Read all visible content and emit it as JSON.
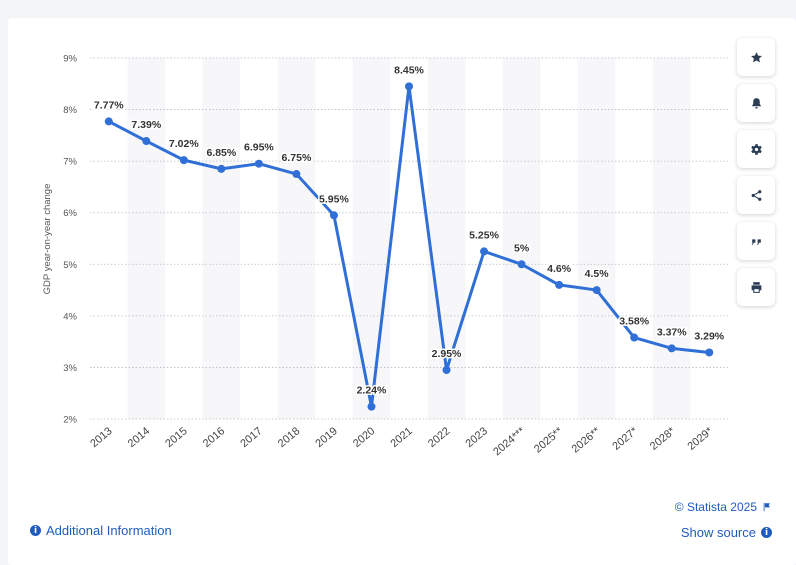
{
  "chart_data": {
    "type": "line",
    "categories": [
      "2013",
      "2014",
      "2015",
      "2016",
      "2017",
      "2018",
      "2019",
      "2020",
      "2021",
      "2022",
      "2023",
      "2024***",
      "2025**",
      "2026**",
      "2027*",
      "2028*",
      "2029*"
    ],
    "values": [
      7.77,
      7.39,
      7.02,
      6.85,
      6.95,
      6.75,
      5.95,
      2.24,
      8.45,
      2.95,
      5.25,
      5.0,
      4.6,
      4.5,
      3.58,
      3.37,
      3.29
    ],
    "data_labels": [
      "7.77%",
      "7.39%",
      "7.02%",
      "6.85%",
      "6.95%",
      "6.75%",
      "5.95%",
      "2.24%",
      "8.45%",
      "2.95%",
      "5.25%",
      "5%",
      "4.6%",
      "4.5%",
      "3.58%",
      "3.37%",
      "3.29%"
    ],
    "ylabel": "GDP year-on-year change",
    "xlabel": "",
    "ylim": [
      2,
      9
    ],
    "yticks": [
      "2%",
      "3%",
      "4%",
      "5%",
      "6%",
      "7%",
      "8%",
      "9%"
    ],
    "grid": true,
    "line_color": "#2f6fd6",
    "title": ""
  },
  "toolbar": {
    "icons": [
      "star-icon",
      "bell-icon",
      "gear-icon",
      "share-icon",
      "quote-icon",
      "print-icon"
    ]
  },
  "footer": {
    "additional_info": "Additional Information",
    "copyright": "© Statista 2025",
    "show_source": "Show source"
  }
}
